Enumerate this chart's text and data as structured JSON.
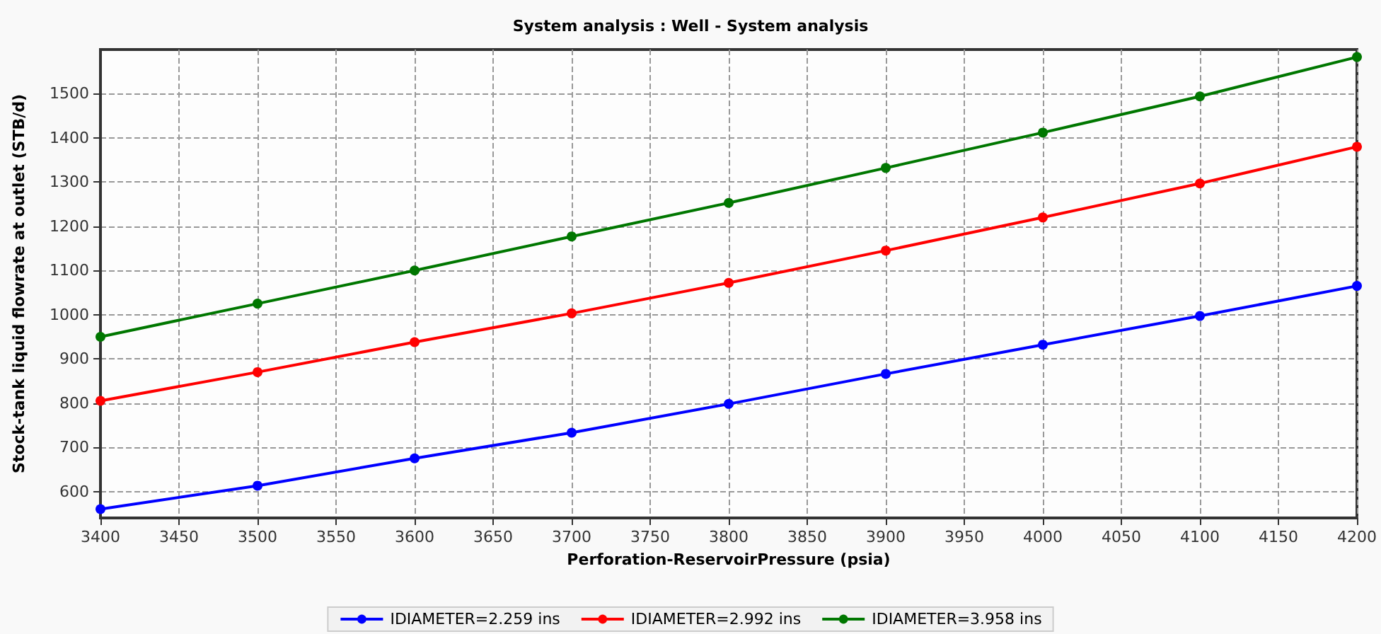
{
  "chart_data": {
    "type": "line",
    "title": "System analysis : Well - System analysis",
    "xlabel": "Perforation-ReservoirPressure (psia)",
    "ylabel": "Stock-tank liquid flowrate at outlet (STB/d)",
    "x": [
      3400,
      3500,
      3600,
      3700,
      3800,
      3900,
      4000,
      4100,
      4200
    ],
    "series": [
      {
        "name": "IDIAMETER=2.259 ins",
        "color": "#0000ff",
        "values": [
          560,
          613,
          675,
          733,
          798,
          866,
          932,
          997,
          1065
        ]
      },
      {
        "name": "IDIAMETER=2.992 ins",
        "color": "#ff0000",
        "values": [
          805,
          870,
          938,
          1003,
          1072,
          1145,
          1220,
          1297,
          1380
        ]
      },
      {
        "name": "IDIAMETER=3.958 ins",
        "color": "#007700",
        "values": [
          950,
          1025,
          1100,
          1177,
          1253,
          1332,
          1412,
          1494,
          1583
        ]
      }
    ],
    "xlim": [
      3400,
      4200
    ],
    "xticks": [
      3400,
      3450,
      3500,
      3550,
      3600,
      3650,
      3700,
      3750,
      3800,
      3850,
      3900,
      3950,
      4000,
      4050,
      4100,
      4150,
      4200
    ],
    "ylim": [
      540,
      1600
    ],
    "yticks": [
      600,
      700,
      800,
      900,
      1000,
      1100,
      1200,
      1300,
      1400,
      1500
    ],
    "grid": true,
    "legend": "bottom",
    "marker": "circle",
    "line_style": "solid"
  }
}
